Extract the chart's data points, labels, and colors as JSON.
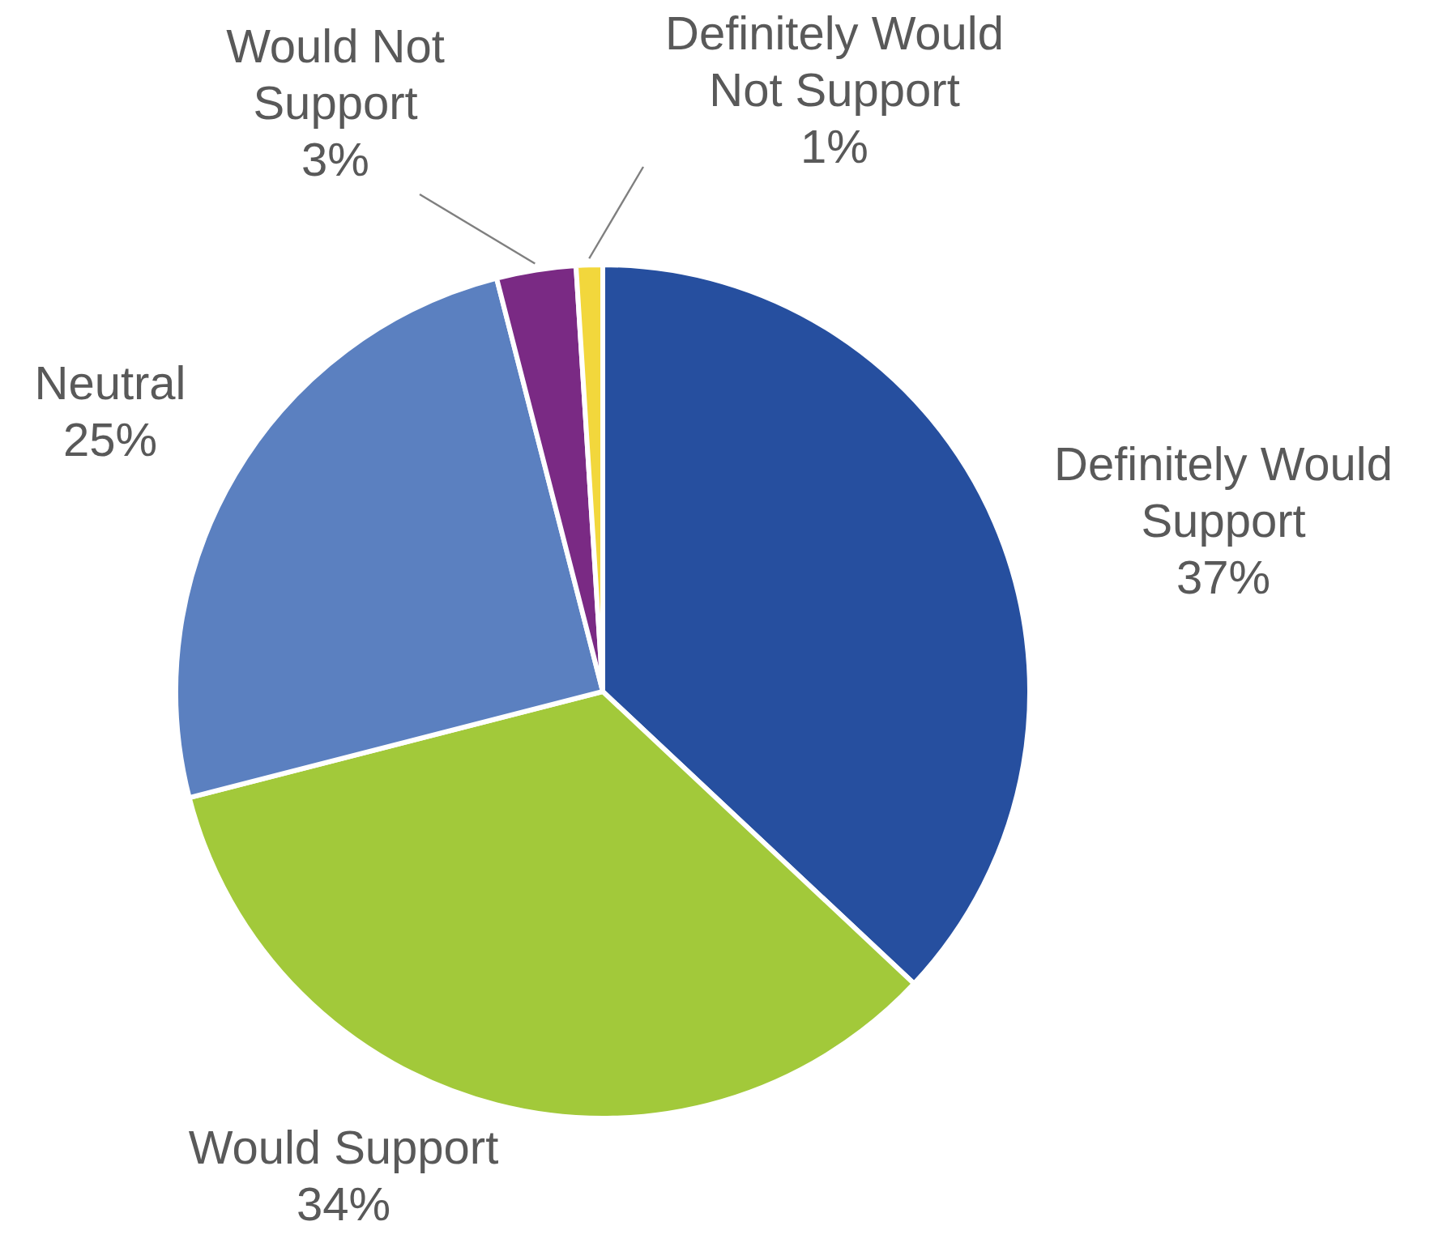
{
  "chart_data": {
    "type": "pie",
    "categories": [
      "Definitely Would Support",
      "Would Support",
      "Neutral",
      "Would Not Support",
      "Definitely Would Not Support"
    ],
    "values": [
      37,
      34,
      25,
      3,
      1
    ],
    "colors": [
      "#264f9f",
      "#a2c93a",
      "#5b80c0",
      "#7a2a84",
      "#f2d73c"
    ],
    "value_labels": [
      "37%",
      "34%",
      "25%",
      "3%",
      "1%"
    ],
    "legend": false
  }
}
